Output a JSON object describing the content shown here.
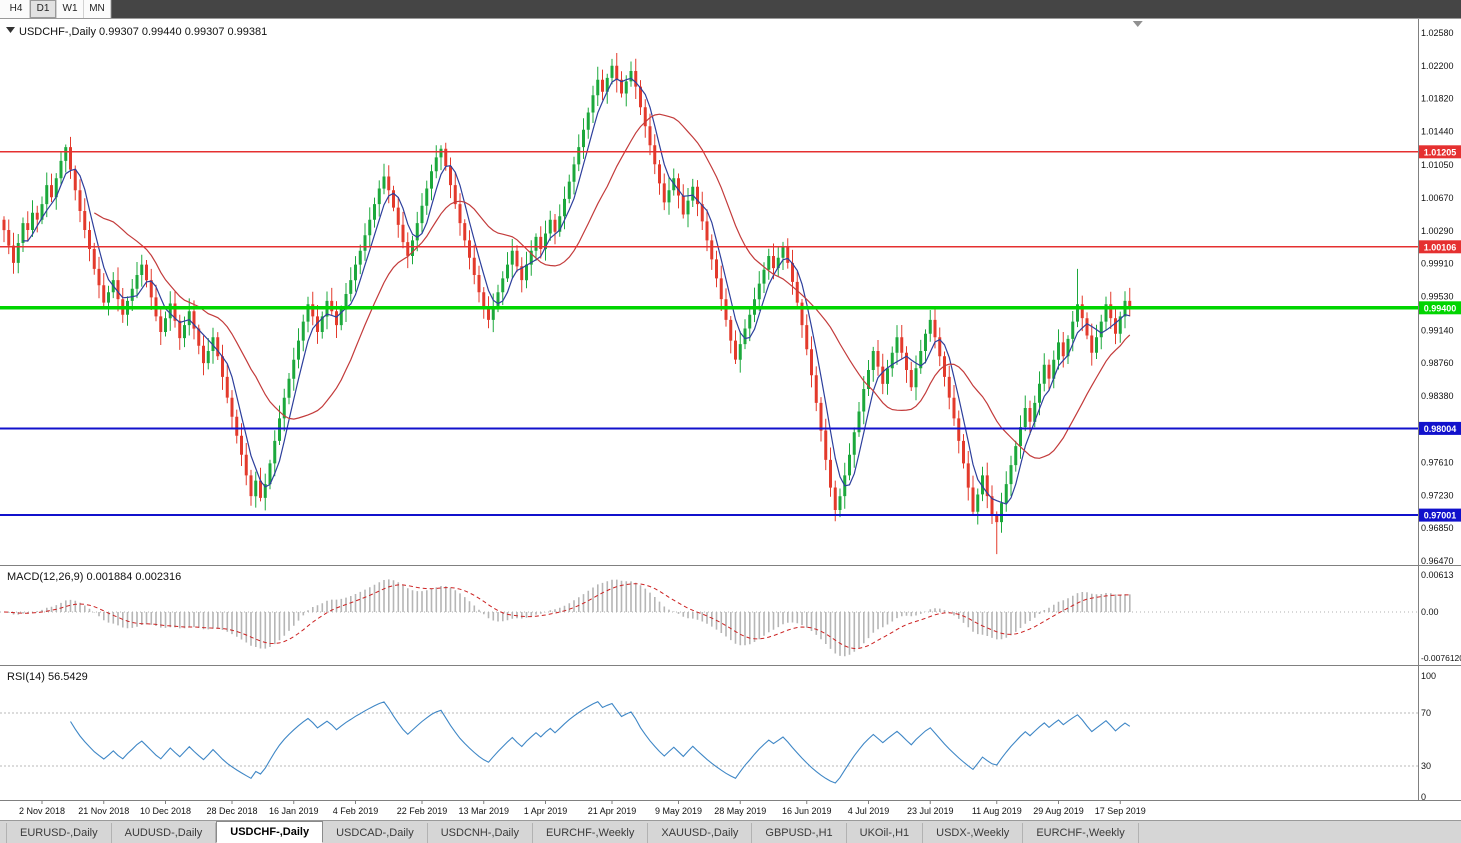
{
  "toolbar": {
    "timeframes": [
      {
        "label": "H4",
        "active": false
      },
      {
        "label": "D1",
        "active": true
      },
      {
        "label": "W1",
        "active": false
      },
      {
        "label": "MN",
        "active": false
      }
    ]
  },
  "main_chart": {
    "title": "USDCHF-,Daily 0.99307 0.99440 0.99307 0.99381",
    "symbol": "USDCHF-",
    "period": "Daily",
    "ohlc": {
      "open": "0.99307",
      "high": "0.99440",
      "low": "0.99307",
      "close": "0.99381"
    },
    "price_axis_ticks": [
      "1.02580",
      "1.02200",
      "1.01820",
      "1.01440",
      "1.01050",
      "1.00670",
      "1.00290",
      "0.99910",
      "0.99530",
      "0.99140",
      "0.98760",
      "0.98380",
      "0.97610",
      "0.97230",
      "0.96850",
      "0.96470"
    ],
    "colors": {
      "bull": "#1ca83c",
      "bear": "#e33a2c",
      "ma_fast": "#2d3f9c",
      "ma_slow": "#c33b3b",
      "hline_red": "#e53030",
      "hline_green": "#00d500",
      "hline_blue": "#1111cc"
    }
  },
  "macd": {
    "label": "MACD(12,26,9) 0.001884 0.002316",
    "params": "12,26,9",
    "values": [
      "0.001884",
      "0.002316"
    ],
    "axis": [
      "0.00613",
      "0.00",
      "-0.0076120"
    ],
    "histogram_color": "#b6b6b6",
    "signal_color": "#cc2222"
  },
  "rsi": {
    "label": "RSI(14) 56.5429",
    "period": "14",
    "value": "56.5429",
    "axis": [
      "100",
      "70",
      "30",
      "0"
    ],
    "levels": [
      70,
      30
    ],
    "line_color": "#3f87c6"
  },
  "tabs": [
    {
      "label": "EURUSD-,Daily",
      "active": false
    },
    {
      "label": "AUDUSD-,Daily",
      "active": false
    },
    {
      "label": "USDCHF-,Daily",
      "active": true
    },
    {
      "label": "USDCAD-,Daily",
      "active": false
    },
    {
      "label": "USDCNH-,Daily",
      "active": false
    },
    {
      "label": "EURCHF-,Weekly",
      "active": false
    },
    {
      "label": "XAUUSD-,Daily",
      "active": false
    },
    {
      "label": "GBPUSD-,H1",
      "active": false
    },
    {
      "label": "UKOil-,H1",
      "active": false
    },
    {
      "label": "USDX-,Weekly",
      "active": false
    },
    {
      "label": "EURCHF-,Weekly",
      "active": false
    }
  ],
  "chart_data": {
    "type": "candlestick",
    "symbol": "USDCHF-",
    "timeframe": "Daily",
    "title": "USDCHF-,Daily",
    "ylim": [
      0.9647,
      1.0258
    ],
    "first_open": 1.0042,
    "closes": [
      1.003,
      1.0012,
      0.9992,
      1.0015,
      1.0038,
      1.003,
      1.005,
      1.0042,
      1.006,
      1.0082,
      1.0068,
      1.009,
      1.011,
      1.0126,
      1.01,
      1.0076,
      1.0052,
      1.003,
      1.0008,
      0.9985,
      0.9966,
      0.9946,
      0.9958,
      0.9972,
      0.995,
      0.9932,
      0.9948,
      0.9962,
      0.9978,
      0.999,
      0.9972,
      0.9952,
      0.993,
      0.9912,
      0.9928,
      0.9945,
      0.9925,
      0.9905,
      0.992,
      0.9936,
      0.9916,
      0.9896,
      0.9876,
      0.989,
      0.9906,
      0.9884,
      0.986,
      0.9836,
      0.9814,
      0.9792,
      0.977,
      0.9746,
      0.9722,
      0.974,
      0.972,
      0.9736,
      0.976,
      0.9786,
      0.9812,
      0.9836,
      0.9858,
      0.988,
      0.9902,
      0.9924,
      0.9944,
      0.993,
      0.9912,
      0.993,
      0.9948,
      0.9936,
      0.992,
      0.9938,
      0.9956,
      0.9972,
      0.999,
      1.0006,
      1.0024,
      1.0042,
      1.006,
      1.0078,
      1.0092,
      1.0076,
      1.0056,
      1.0036,
      1.0016,
      1.0,
      1.0018,
      1.0038,
      1.0058,
      1.0078,
      1.0098,
      1.0114,
      1.0124,
      1.0104,
      1.0082,
      1.006,
      1.0038,
      1.0018,
      0.9998,
      0.9978,
      0.9958,
      0.994,
      0.9926,
      0.9942,
      0.9958,
      0.9974,
      0.999,
      1.0006,
      0.9988,
      0.9972,
      0.999,
      1.0006,
      1.0022,
      1.0008,
      1.0026,
      1.0042,
      1.0028,
      1.0046,
      1.0066,
      1.0086,
      1.0106,
      1.0126,
      1.0146,
      1.0166,
      1.0186,
      1.0204,
      1.019,
      1.0206,
      1.022,
      1.0204,
      1.0188,
      1.0202,
      1.0214,
      1.0196,
      1.0172,
      1.015,
      1.0128,
      1.0106,
      1.0084,
      1.0062,
      1.0076,
      1.009,
      1.007,
      1.0048,
      1.0064,
      1.008,
      1.006,
      1.004,
      1.0018,
      0.9996,
      0.9974,
      0.995,
      0.9926,
      0.9902,
      0.988,
      0.9898,
      0.9916,
      0.9932,
      0.995,
      0.9968,
      0.9984,
      1.0,
      0.9986,
      0.9998,
      1.001,
      0.9992,
      0.997,
      0.9946,
      0.992,
      0.9892,
      0.9862,
      0.983,
      0.9798,
      0.9764,
      0.9732,
      0.9706,
      0.9722,
      0.9746,
      0.977,
      0.9796,
      0.982,
      0.9846,
      0.9868,
      0.989,
      0.9872,
      0.9852,
      0.987,
      0.9888,
      0.9906,
      0.9888,
      0.9868,
      0.9848,
      0.987,
      0.989,
      0.991,
      0.9926,
      0.9906,
      0.9884,
      0.986,
      0.9836,
      0.9812,
      0.9786,
      0.976,
      0.9732,
      0.9704,
      0.9724,
      0.9746,
      0.9722,
      0.97,
      0.9692,
      0.9714,
      0.9736,
      0.9758,
      0.978,
      0.9802,
      0.9824,
      0.9808,
      0.983,
      0.9852,
      0.9874,
      0.9858,
      0.988,
      0.99,
      0.9884,
      0.9904,
      0.9924,
      0.9944,
      0.9928,
      0.9908,
      0.9888,
      0.9906,
      0.9924,
      0.9944,
      0.9928,
      0.991,
      0.993,
      0.9948,
      0.9938
    ],
    "wick_overrides": [
      {
        "i": 13,
        "high": 1.0129
      },
      {
        "i": 54,
        "low": 0.9716
      },
      {
        "i": 92,
        "high": 1.0128
      },
      {
        "i": 128,
        "high": 1.0228
      },
      {
        "i": 132,
        "high": 1.0225
      },
      {
        "i": 175,
        "low": 0.9693
      },
      {
        "i": 209,
        "low": 0.9655
      },
      {
        "i": 226,
        "high": 0.9985
      }
    ],
    "hlines": [
      {
        "price": 1.01205,
        "label": "1.01205",
        "color": "#e53030",
        "width": 1.4
      },
      {
        "price": 1.00106,
        "label": "1.00106",
        "color": "#e53030",
        "width": 1.4
      },
      {
        "price": 0.994,
        "label": "0.99400",
        "color": "#00d500",
        "width": 3.5
      },
      {
        "price": 0.98004,
        "label": "0.98004",
        "color": "#1111cc",
        "width": 2
      },
      {
        "price": 0.97001,
        "label": "0.97001",
        "color": "#1111cc",
        "width": 2
      }
    ],
    "moving_averages": [
      {
        "name": "fast",
        "window": 5,
        "color": "#2d3f9c"
      },
      {
        "name": "slow",
        "window": 20,
        "color": "#c33b3b"
      }
    ],
    "date_labels": [
      {
        "text": "2 Nov 2018",
        "bar": 8
      },
      {
        "text": "21 Nov 2018",
        "bar": 21
      },
      {
        "text": "10 Dec 2018",
        "bar": 34
      },
      {
        "text": "28 Dec 2018",
        "bar": 48
      },
      {
        "text": "16 Jan 2019",
        "bar": 61
      },
      {
        "text": "4 Feb 2019",
        "bar": 74
      },
      {
        "text": "22 Feb 2019",
        "bar": 88
      },
      {
        "text": "13 Mar 2019",
        "bar": 101
      },
      {
        "text": "1 Apr 2019",
        "bar": 114
      },
      {
        "text": "21 Apr 2019",
        "bar": 128
      },
      {
        "text": "9 May 2019",
        "bar": 142
      },
      {
        "text": "28 May 2019",
        "bar": 155
      },
      {
        "text": "16 Jun 2019",
        "bar": 169
      },
      {
        "text": "4 Jul 2019",
        "bar": 182
      },
      {
        "text": "23 Jul 2019",
        "bar": 195
      },
      {
        "text": "11 Aug 2019",
        "bar": 209
      },
      {
        "text": "29 Aug 2019",
        "bar": 222
      },
      {
        "text": "17 Sep 2019",
        "bar": 235
      }
    ]
  }
}
